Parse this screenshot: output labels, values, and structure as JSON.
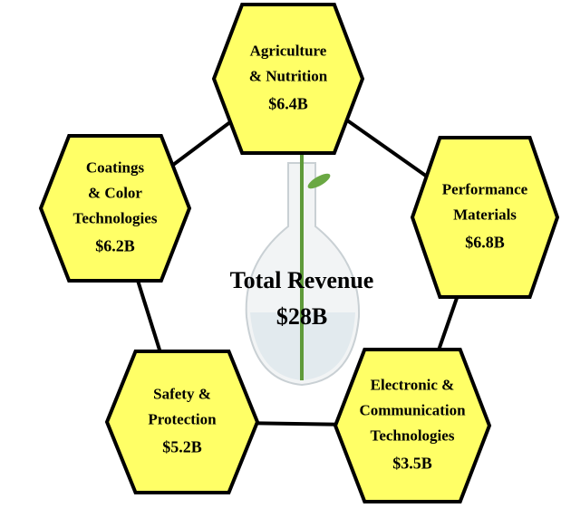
{
  "center": {
    "title": "Total Revenue",
    "value": "$28B"
  },
  "nodes": [
    {
      "lines": [
        "Agriculture",
        "& Nutrition"
      ],
      "value": "$6.4B"
    },
    {
      "lines": [
        "Performance",
        "Materials"
      ],
      "value": "$6.8B"
    },
    {
      "lines": [
        "Electronic &",
        "Communication",
        "Technologies"
      ],
      "value": "$3.5B"
    },
    {
      "lines": [
        "Safety &",
        "Protection"
      ],
      "value": "$5.2B"
    },
    {
      "lines": [
        "Coatings",
        "& Color",
        "Technologies"
      ],
      "value": "$6.2B"
    }
  ]
}
